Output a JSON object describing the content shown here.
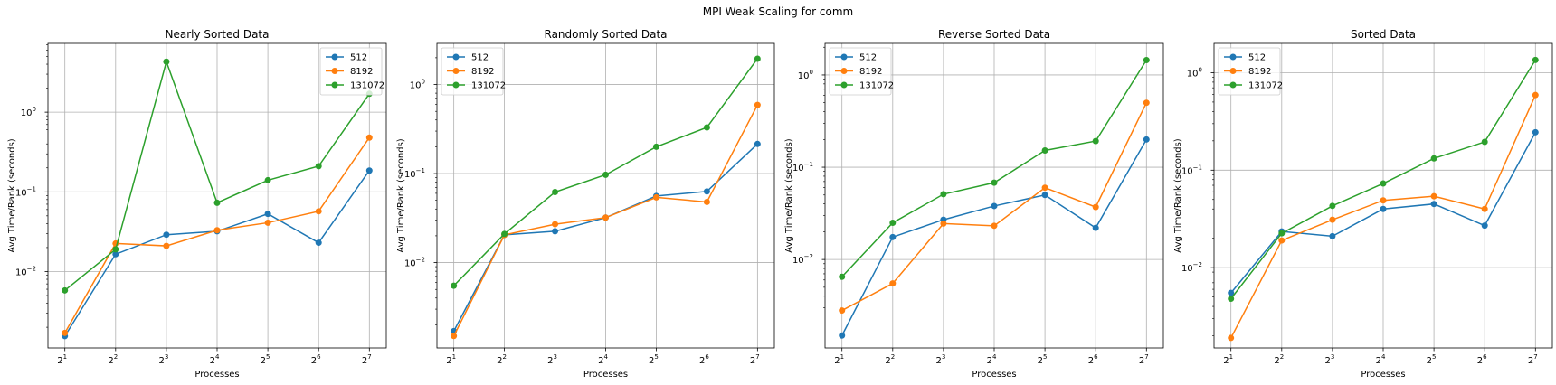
{
  "figure_title": "MPI Weak Scaling for comm",
  "colors": {
    "series": [
      "#1f77b4",
      "#ff7f0e",
      "#2ca02c"
    ],
    "grid": "#b0b0b0",
    "axis": "#000000",
    "legend_border": "#cccccc"
  },
  "chart_data": [
    {
      "type": "line",
      "title": "Nearly Sorted Data",
      "xlabel": "Processes",
      "ylabel": "Avg Time/Rank (seconds)",
      "yscale": "log",
      "xscale": "log2",
      "grid": true,
      "legend_position": "upper right",
      "x": [
        2,
        4,
        8,
        16,
        32,
        64,
        128
      ],
      "x_tick_labels": [
        "2",
        "2",
        "2",
        "2",
        "2",
        "2",
        "2"
      ],
      "x_tick_exponents": [
        "1",
        "2",
        "3",
        "4",
        "5",
        "6",
        "7"
      ],
      "y_tick_labels": [
        {
          "value": 0.01,
          "base": "10",
          "exp": "−2"
        },
        {
          "value": 0.1,
          "base": "10",
          "exp": "−1"
        },
        {
          "value": 1,
          "base": "10",
          "exp": "0"
        }
      ],
      "ylim": [
        0.0011,
        7.3
      ],
      "series": [
        {
          "name": "512",
          "values": [
            0.00155,
            0.0165,
            0.029,
            0.032,
            0.053,
            0.023,
            0.185
          ]
        },
        {
          "name": "8192",
          "values": [
            0.0017,
            0.0225,
            0.021,
            0.033,
            0.041,
            0.057,
            0.48
          ]
        },
        {
          "name": "131072",
          "values": [
            0.0058,
            0.019,
            4.3,
            0.073,
            0.14,
            0.21,
            1.7
          ]
        }
      ]
    },
    {
      "type": "line",
      "title": "Randomly Sorted Data",
      "xlabel": "Processes",
      "ylabel": "Avg Time/Rank (seconds)",
      "yscale": "log",
      "xscale": "log2",
      "grid": true,
      "legend_position": "upper left",
      "x": [
        2,
        4,
        8,
        16,
        32,
        64,
        128
      ],
      "x_tick_labels": [
        "2",
        "2",
        "2",
        "2",
        "2",
        "2",
        "2"
      ],
      "x_tick_exponents": [
        "1",
        "2",
        "3",
        "4",
        "5",
        "6",
        "7"
      ],
      "y_tick_labels": [
        {
          "value": 0.01,
          "base": "10",
          "exp": "−2"
        },
        {
          "value": 0.1,
          "base": "10",
          "exp": "−1"
        },
        {
          "value": 1,
          "base": "10",
          "exp": "0"
        }
      ],
      "ylim": [
        0.0011,
        2.9
      ],
      "series": [
        {
          "name": "512",
          "values": [
            0.0017,
            0.0205,
            0.0225,
            0.032,
            0.056,
            0.063,
            0.215
          ]
        },
        {
          "name": "8192",
          "values": [
            0.0015,
            0.0205,
            0.027,
            0.032,
            0.054,
            0.048,
            0.59
          ]
        },
        {
          "name": "131072",
          "values": [
            0.0055,
            0.021,
            0.062,
            0.097,
            0.2,
            0.33,
            1.95
          ]
        }
      ]
    },
    {
      "type": "line",
      "title": "Reverse Sorted Data",
      "xlabel": "Processes",
      "ylabel": "Avg Time/Rank (seconds)",
      "yscale": "log",
      "xscale": "log2",
      "grid": true,
      "legend_position": "upper left",
      "x": [
        2,
        4,
        8,
        16,
        32,
        64,
        128
      ],
      "x_tick_labels": [
        "2",
        "2",
        "2",
        "2",
        "2",
        "2",
        "2"
      ],
      "x_tick_exponents": [
        "1",
        "2",
        "3",
        "4",
        "5",
        "6",
        "7"
      ],
      "y_tick_labels": [
        {
          "value": 0.01,
          "base": "10",
          "exp": "−2"
        },
        {
          "value": 0.1,
          "base": "10",
          "exp": "−1"
        },
        {
          "value": 1,
          "base": "10",
          "exp": "0"
        }
      ],
      "ylim": [
        0.0011,
        2.2
      ],
      "series": [
        {
          "name": "512",
          "values": [
            0.0015,
            0.0175,
            0.027,
            0.038,
            0.05,
            0.022,
            0.2
          ]
        },
        {
          "name": "8192",
          "values": [
            0.0028,
            0.0055,
            0.0245,
            0.0232,
            0.06,
            0.037,
            0.5
          ]
        },
        {
          "name": "131072",
          "values": [
            0.0065,
            0.025,
            0.051,
            0.068,
            0.152,
            0.192,
            1.45
          ]
        }
      ]
    },
    {
      "type": "line",
      "title": "Sorted Data",
      "xlabel": "Processes",
      "ylabel": "Avg Time/Rank (seconds)",
      "yscale": "log",
      "xscale": "log2",
      "grid": true,
      "legend_position": "upper left",
      "x": [
        2,
        4,
        8,
        16,
        32,
        64,
        128
      ],
      "x_tick_labels": [
        "2",
        "2",
        "2",
        "2",
        "2",
        "2",
        "2"
      ],
      "x_tick_exponents": [
        "1",
        "2",
        "3",
        "4",
        "5",
        "6",
        "7"
      ],
      "y_tick_labels": [
        {
          "value": 0.01,
          "base": "10",
          "exp": "−2"
        },
        {
          "value": 0.1,
          "base": "10",
          "exp": "−1"
        },
        {
          "value": 1,
          "base": "10",
          "exp": "0"
        }
      ],
      "ylim": [
        0.0015,
        2.0
      ],
      "series": [
        {
          "name": "512",
          "values": [
            0.0055,
            0.0235,
            0.021,
            0.04,
            0.045,
            0.027,
            0.245
          ]
        },
        {
          "name": "8192",
          "values": [
            0.0019,
            0.019,
            0.031,
            0.049,
            0.054,
            0.04,
            0.59
          ]
        },
        {
          "name": "131072",
          "values": [
            0.0048,
            0.0225,
            0.043,
            0.073,
            0.132,
            0.195,
            1.35
          ]
        }
      ]
    }
  ]
}
